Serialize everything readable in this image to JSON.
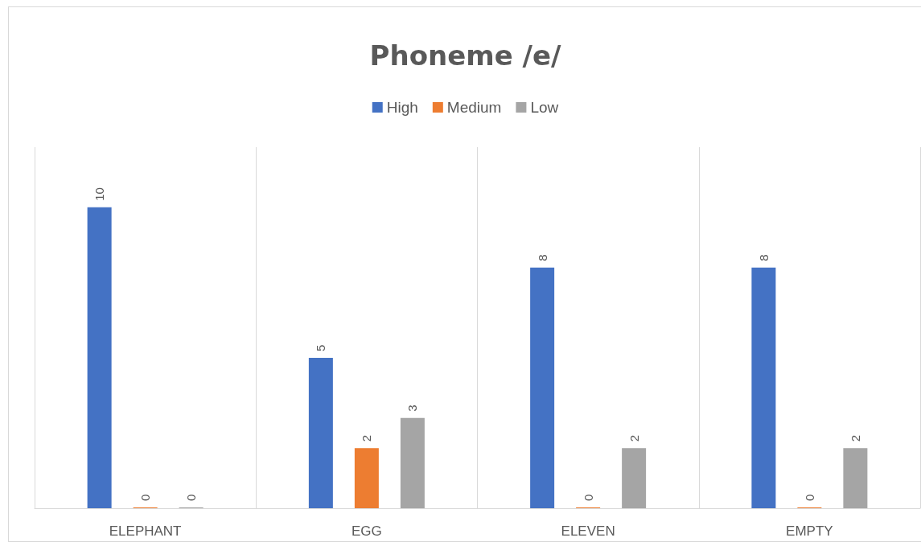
{
  "chart_data": {
    "type": "bar",
    "title": "Phoneme /e/",
    "categories": [
      "ELEPHANT",
      "EGG",
      "ELEVEN",
      "EMPTY"
    ],
    "series": [
      {
        "name": "High",
        "color": "#4472c4",
        "values": [
          10,
          5,
          8,
          8
        ]
      },
      {
        "name": "Medium",
        "color": "#ed7d31",
        "values": [
          0,
          2,
          0,
          0
        ]
      },
      {
        "name": "Low",
        "color": "#a5a5a5",
        "values": [
          0,
          3,
          2,
          2
        ]
      }
    ],
    "data_labels": true,
    "legend": "top",
    "grid": "x"
  }
}
